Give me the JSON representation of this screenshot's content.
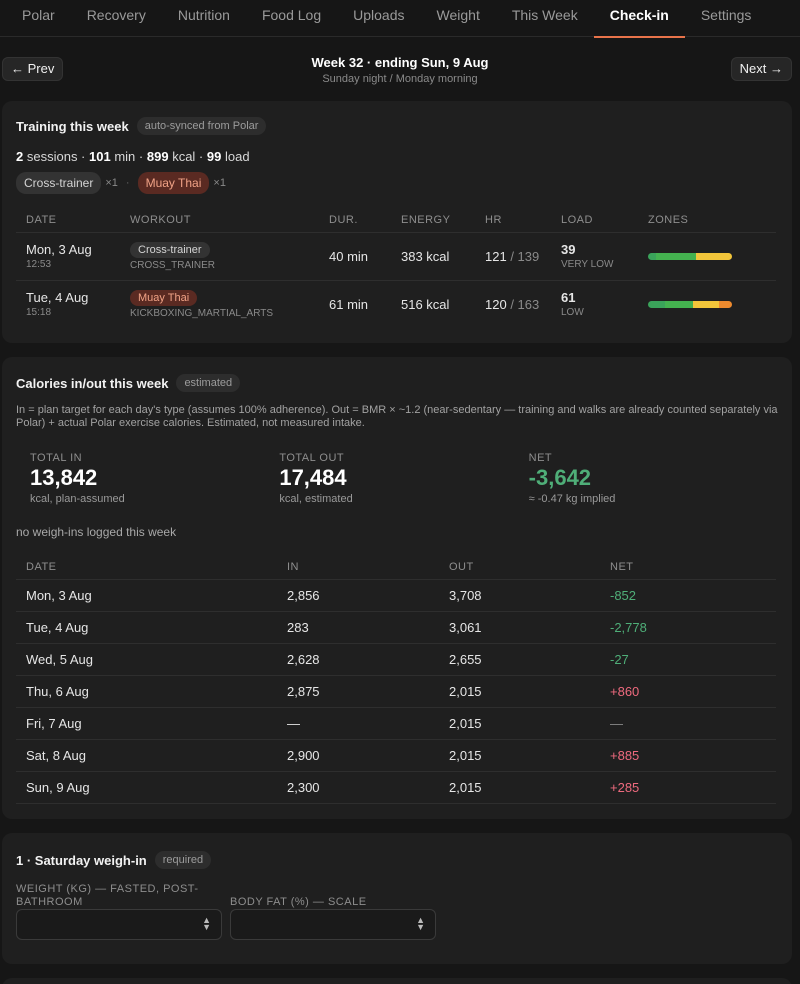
{
  "nav": {
    "tabs": [
      "Polar",
      "Recovery",
      "Nutrition",
      "Food Log",
      "Uploads",
      "Weight",
      "This Week",
      "Check-in",
      "Settings"
    ],
    "active": "Check-in"
  },
  "week": {
    "prev_label": "← Prev",
    "next_label": "Next →",
    "title": "Week 32 · ending Sun, 9 Aug",
    "subtitle": "Sunday night / Monday morning"
  },
  "training": {
    "title": "Training this week",
    "badge": "auto-synced from Polar",
    "summary": {
      "sessions": "2",
      "sessions_label": "sessions ·",
      "minutes": "101",
      "minutes_label": "min ·",
      "kcal": "899",
      "kcal_label": "kcal ·",
      "load": "99",
      "load_label": "load"
    },
    "tags": [
      {
        "label": "Cross-trainer",
        "count": "×1",
        "color": "gray"
      },
      {
        "label": "Muay Thai",
        "count": "×1",
        "color": "red"
      }
    ],
    "tag_separator": "·",
    "columns": [
      "DATE",
      "WORKOUT",
      "DUR.",
      "ENERGY",
      "HR",
      "LOAD",
      "ZONES"
    ],
    "rows": [
      {
        "date": "Mon, 3 Aug",
        "time": "12:53",
        "workout": "Cross-trainer",
        "workout_color": "gray",
        "sport": "CROSS_TRAINER",
        "duration": "40 min",
        "energy": "383 kcal",
        "hr_avg": "121",
        "hr_max": "/ 139",
        "load": "39",
        "load_level": "VERY LOW",
        "zones": [
          {
            "color": "#3aa35a",
            "share": 0.1
          },
          {
            "color": "#44b14f",
            "share": 0.47
          },
          {
            "color": "#f2c53a",
            "share": 0.43
          }
        ]
      },
      {
        "date": "Tue, 4 Aug",
        "time": "15:18",
        "workout": "Muay Thai",
        "workout_color": "red",
        "sport": "KICKBOXING_MARTIAL_ARTS",
        "duration": "61 min",
        "energy": "516 kcal",
        "hr_avg": "120",
        "hr_max": "/ 163",
        "load": "61",
        "load_level": "LOW",
        "zones": [
          {
            "color": "#3aa35a",
            "share": 0.2
          },
          {
            "color": "#44b14f",
            "share": 0.34
          },
          {
            "color": "#f2c53a",
            "share": 0.31
          },
          {
            "color": "#ee8a2e",
            "share": 0.15
          }
        ]
      }
    ]
  },
  "calories": {
    "title": "Calories in/out this week",
    "badge": "estimated",
    "description": "In = plan target for each day's type (assumes 100% adherence). Out = BMR × ~1.2 (near-sedentary — training and walks are already counted separately via Polar) + actual Polar exercise calories. Estimated, not measured intake.",
    "totals": [
      {
        "label": "TOTAL IN",
        "value": "13,842",
        "hint": "kcal, plan-assumed",
        "style": ""
      },
      {
        "label": "TOTAL OUT",
        "value": "17,484",
        "hint": "kcal, estimated",
        "style": ""
      },
      {
        "label": "NET",
        "value": "-3,642",
        "hint": "≈ -0.47 kg implied",
        "style": "green"
      }
    ],
    "note": "no weigh-ins logged this week",
    "columns": [
      "DATE",
      "IN",
      "OUT",
      "NET"
    ],
    "rows": [
      {
        "date": "Mon, 3 Aug",
        "in": "2,856",
        "out": "3,708",
        "net": "-852",
        "sign": "neg"
      },
      {
        "date": "Tue, 4 Aug",
        "in": "283",
        "out": "3,061",
        "net": "-2,778",
        "sign": "neg"
      },
      {
        "date": "Wed, 5 Aug",
        "in": "2,628",
        "out": "2,655",
        "net": "-27",
        "sign": "neg"
      },
      {
        "date": "Thu, 6 Aug",
        "in": "2,875",
        "out": "2,015",
        "net": "+860",
        "sign": "pos"
      },
      {
        "date": "Fri, 7 Aug",
        "in": "—",
        "out": "2,015",
        "net": "—",
        "sign": "dash"
      },
      {
        "date": "Sat, 8 Aug",
        "in": "2,900",
        "out": "2,015",
        "net": "+885",
        "sign": "pos"
      },
      {
        "date": "Sun, 9 Aug",
        "in": "2,300",
        "out": "2,015",
        "net": "+285",
        "sign": "pos"
      }
    ]
  },
  "weighin": {
    "title": "1 · Saturday weigh-in",
    "badge": "required",
    "fields": [
      {
        "label": "WEIGHT (KG) — FASTED, POST-BATHROOM",
        "value": ""
      },
      {
        "label": "BODY FAT (%) — SCALE",
        "value": ""
      }
    ]
  }
}
